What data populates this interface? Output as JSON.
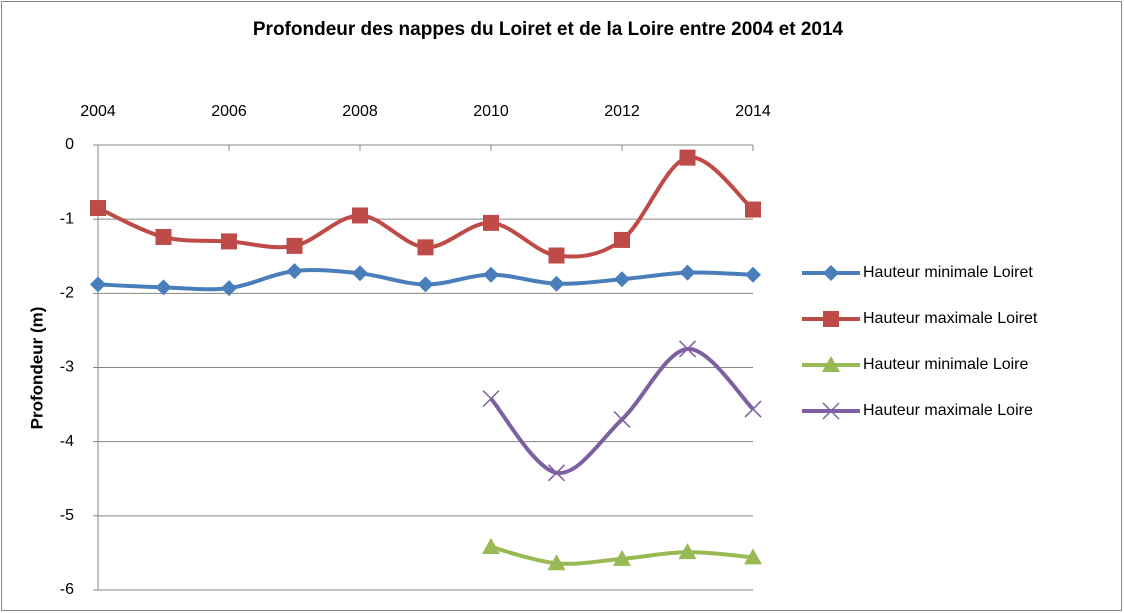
{
  "chart_data": {
    "type": "line",
    "title": "Profondeur des nappes du Loiret et de la Loire entre 2004 et 2014",
    "y_label": "Profondeur (m)",
    "x": [
      2004,
      2005,
      2006,
      2007,
      2008,
      2009,
      2010,
      2011,
      2012,
      2013,
      2014
    ],
    "xlim": [
      2004,
      2014
    ],
    "xticks": [
      2004,
      2006,
      2008,
      2010,
      2012,
      2014
    ],
    "ylim": [
      -6,
      0
    ],
    "yticks": [
      -6,
      -5,
      -4,
      -3,
      -2,
      -1,
      0
    ],
    "grid": true,
    "smooth": true,
    "legend": "right",
    "series": [
      {
        "name": "Hauteur minimale Loiret",
        "color": "#4a7ebb",
        "marker": "diamond",
        "values": [
          -1.88,
          -1.92,
          -1.93,
          -1.7,
          -1.73,
          -1.88,
          -1.75,
          -1.87,
          -1.81,
          -1.72,
          -1.75
        ]
      },
      {
        "name": "Hauteur maximale Loiret",
        "color": "#be4b48",
        "marker": "square",
        "values": [
          -0.85,
          -1.24,
          -1.3,
          -1.36,
          -0.95,
          -1.38,
          -1.05,
          -1.49,
          -1.28,
          -0.17,
          -0.87
        ]
      },
      {
        "name": "Hauteur minimale Loire",
        "color": "#98b954",
        "marker": "triangle",
        "values": [
          null,
          null,
          null,
          null,
          null,
          null,
          -5.42,
          -5.64,
          -5.58,
          -5.49,
          -5.56
        ]
      },
      {
        "name": "Hauteur maximale Loire",
        "color": "#7d60a0",
        "marker": "x",
        "values": [
          null,
          null,
          null,
          null,
          null,
          null,
          -3.42,
          -4.42,
          -3.7,
          -2.75,
          -3.56
        ]
      }
    ]
  }
}
